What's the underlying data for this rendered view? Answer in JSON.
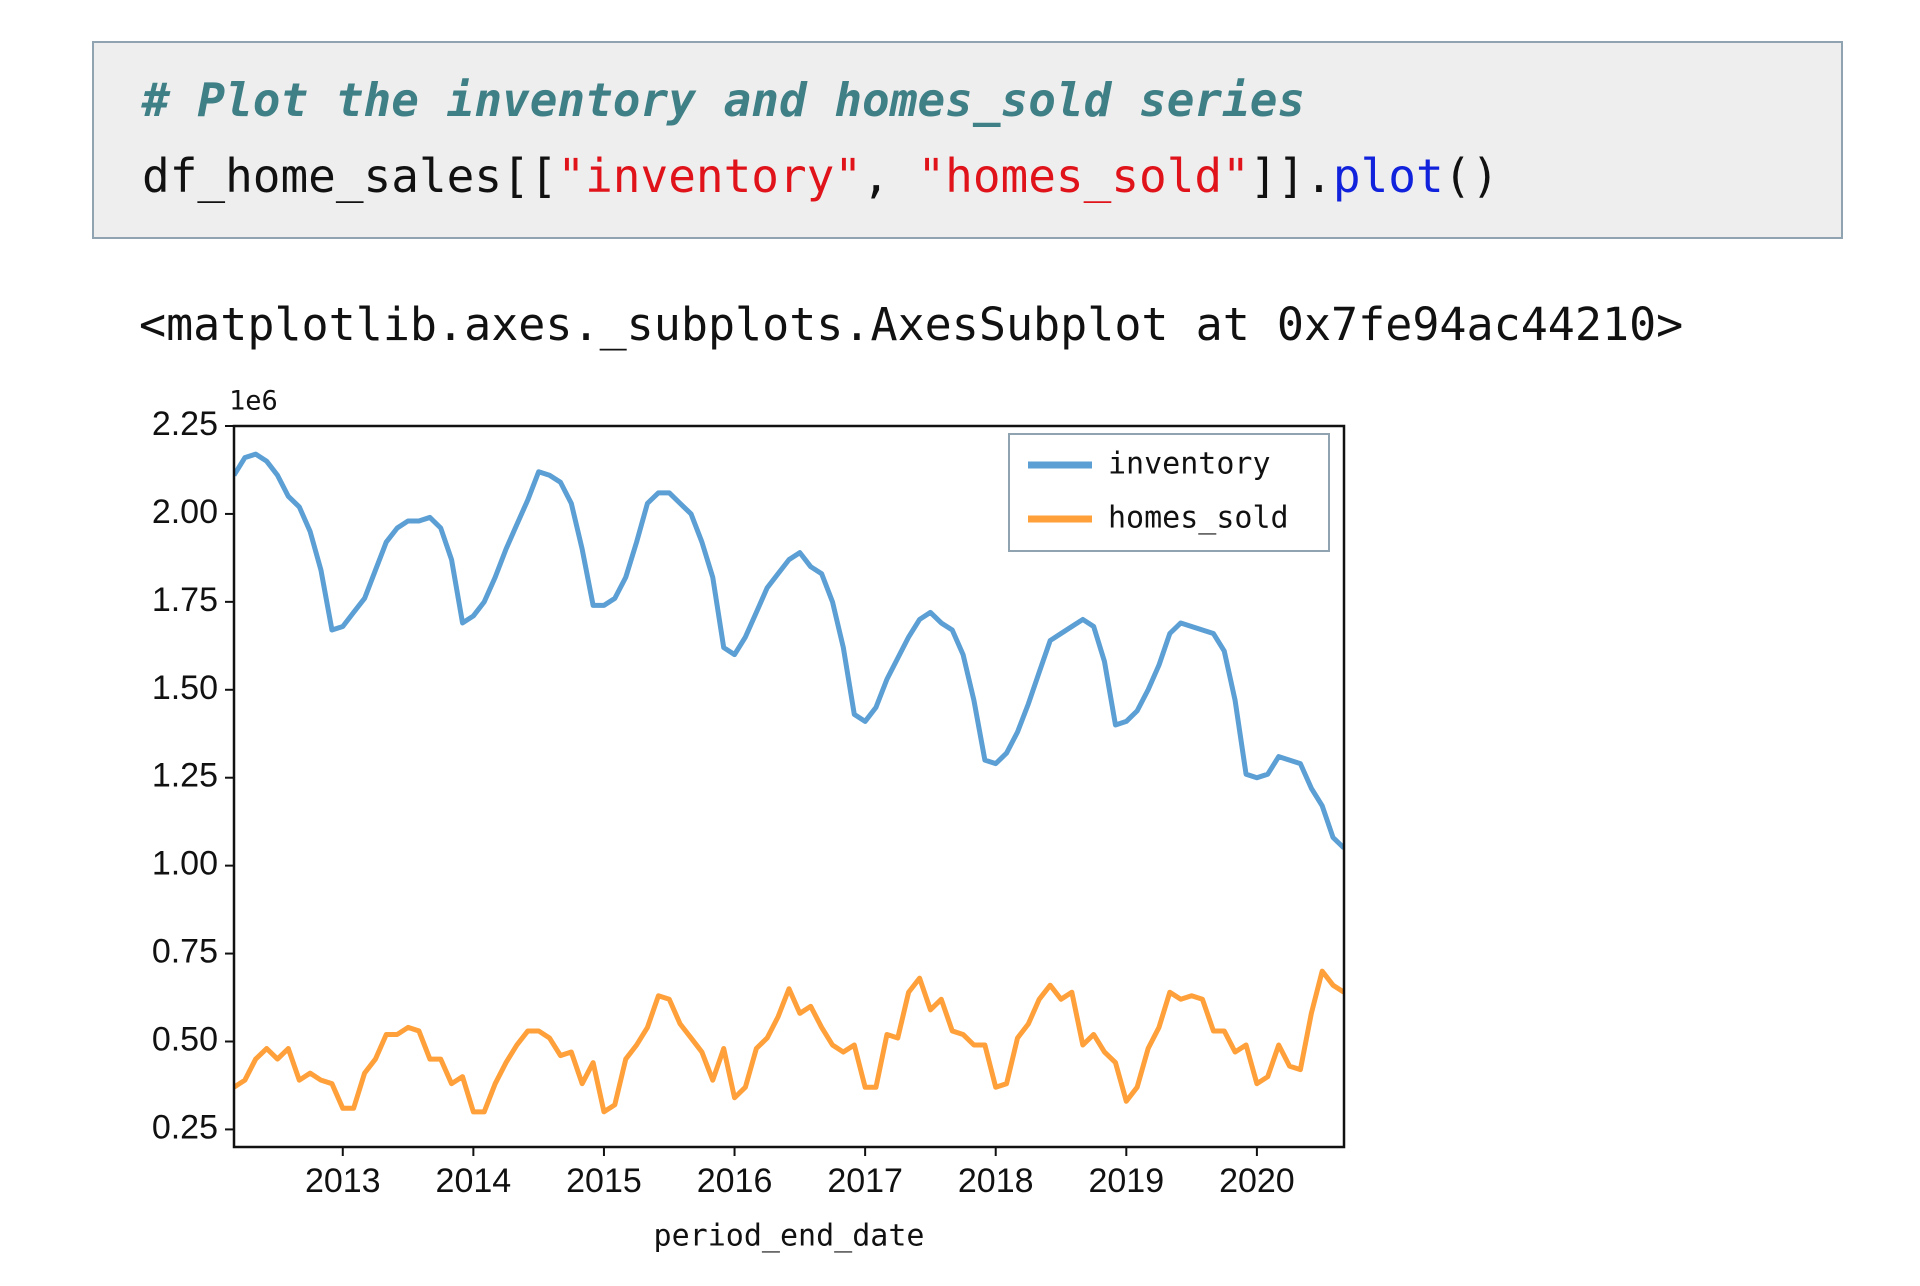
{
  "code_cell": {
    "comment": "# Plot the inventory and homes_sold series",
    "code": [
      "df_home_sales[[",
      "\"inventory\"",
      ", ",
      "\"homes_sold\"",
      "]].",
      "plot",
      "()"
    ]
  },
  "output": "<matplotlib.axes._subplots.AxesSubplot at 0x7fe94ac44210>",
  "chart_data": {
    "type": "line",
    "xlabel": "period_end_date",
    "y_offset_label": "1e6",
    "x": [
      2012.167,
      2012.25,
      2012.333,
      2012.417,
      2012.5,
      2012.583,
      2012.667,
      2012.75,
      2012.833,
      2012.917,
      2013,
      2013.083,
      2013.167,
      2013.25,
      2013.333,
      2013.417,
      2013.5,
      2013.583,
      2013.667,
      2013.75,
      2013.833,
      2013.917,
      2014,
      2014.083,
      2014.167,
      2014.25,
      2014.333,
      2014.417,
      2014.5,
      2014.583,
      2014.667,
      2014.75,
      2014.833,
      2014.917,
      2015,
      2015.083,
      2015.167,
      2015.25,
      2015.333,
      2015.417,
      2015.5,
      2015.583,
      2015.667,
      2015.75,
      2015.833,
      2015.917,
      2016,
      2016.083,
      2016.167,
      2016.25,
      2016.333,
      2016.417,
      2016.5,
      2016.583,
      2016.667,
      2016.75,
      2016.833,
      2016.917,
      2017,
      2017.083,
      2017.167,
      2017.25,
      2017.333,
      2017.417,
      2017.5,
      2017.583,
      2017.667,
      2017.75,
      2017.833,
      2017.917,
      2018,
      2018.083,
      2018.167,
      2018.25,
      2018.333,
      2018.417,
      2018.5,
      2018.583,
      2018.667,
      2018.75,
      2018.833,
      2018.917,
      2019,
      2019.083,
      2019.167,
      2019.25,
      2019.333,
      2019.417,
      2019.5,
      2019.583,
      2019.667,
      2019.75,
      2019.833,
      2019.917,
      2020,
      2020.083,
      2020.167,
      2020.25,
      2020.333,
      2020.417,
      2020.5,
      2020.583,
      2020.667
    ],
    "series": [
      {
        "name": "inventory",
        "color": "#5b9fd4",
        "values": [
          2.11,
          2.16,
          2.17,
          2.15,
          2.11,
          2.05,
          2.02,
          1.95,
          1.84,
          1.67,
          1.68,
          1.72,
          1.76,
          1.84,
          1.92,
          1.96,
          1.98,
          1.98,
          1.99,
          1.96,
          1.87,
          1.69,
          1.71,
          1.75,
          1.82,
          1.9,
          1.97,
          2.04,
          2.12,
          2.11,
          2.09,
          2.03,
          1.9,
          1.74,
          1.74,
          1.76,
          1.82,
          1.92,
          2.03,
          2.06,
          2.06,
          2.03,
          2.0,
          1.92,
          1.82,
          1.62,
          1.6,
          1.65,
          1.72,
          1.79,
          1.83,
          1.87,
          1.89,
          1.85,
          1.83,
          1.75,
          1.62,
          1.43,
          1.41,
          1.45,
          1.53,
          1.59,
          1.65,
          1.7,
          1.72,
          1.69,
          1.67,
          1.6,
          1.47,
          1.3,
          1.29,
          1.32,
          1.38,
          1.46,
          1.55,
          1.64,
          1.66,
          1.68,
          1.7,
          1.68,
          1.58,
          1.4,
          1.41,
          1.44,
          1.5,
          1.57,
          1.66,
          1.69,
          1.68,
          1.67,
          1.66,
          1.61,
          1.47,
          1.26,
          1.25,
          1.26,
          1.31,
          1.3,
          1.29,
          1.22,
          1.17,
          1.08,
          1.05
        ]
      },
      {
        "name": "homes_sold",
        "color": "#ffa03a",
        "values": [
          0.37,
          0.39,
          0.45,
          0.48,
          0.45,
          0.48,
          0.39,
          0.41,
          0.39,
          0.38,
          0.31,
          0.31,
          0.41,
          0.45,
          0.52,
          0.52,
          0.54,
          0.53,
          0.45,
          0.45,
          0.38,
          0.4,
          0.3,
          0.3,
          0.38,
          0.44,
          0.49,
          0.53,
          0.53,
          0.51,
          0.46,
          0.47,
          0.38,
          0.44,
          0.3,
          0.32,
          0.45,
          0.49,
          0.54,
          0.63,
          0.62,
          0.55,
          0.51,
          0.47,
          0.39,
          0.48,
          0.34,
          0.37,
          0.48,
          0.51,
          0.57,
          0.65,
          0.58,
          0.6,
          0.54,
          0.49,
          0.47,
          0.49,
          0.37,
          0.37,
          0.52,
          0.51,
          0.64,
          0.68,
          0.59,
          0.62,
          0.53,
          0.52,
          0.49,
          0.49,
          0.37,
          0.38,
          0.51,
          0.55,
          0.62,
          0.66,
          0.62,
          0.64,
          0.49,
          0.52,
          0.47,
          0.44,
          0.33,
          0.37,
          0.48,
          0.54,
          0.64,
          0.62,
          0.63,
          0.62,
          0.53,
          0.53,
          0.47,
          0.49,
          0.38,
          0.4,
          0.49,
          0.43,
          0.42,
          0.58,
          0.7,
          0.66,
          0.64
        ]
      }
    ],
    "xlim": [
      2012.167,
      2020.667
    ],
    "xticks": [
      2013,
      2014,
      2015,
      2016,
      2017,
      2018,
      2019,
      2020
    ],
    "ylim": [
      0.2,
      2.25
    ],
    "yticks": [
      {
        "value": 0.25,
        "label": "0.25"
      },
      {
        "value": 0.5,
        "label": "0.50"
      },
      {
        "value": 0.75,
        "label": "0.75"
      },
      {
        "value": 1,
        "label": "1.00"
      },
      {
        "value": 1.25,
        "label": "1.25"
      },
      {
        "value": 1.5,
        "label": "1.50"
      },
      {
        "value": 1.75,
        "label": "1.75"
      },
      {
        "value": 2,
        "label": "2.00"
      },
      {
        "value": 2.25,
        "label": "2.25"
      }
    ],
    "grid": false,
    "legend": "upper right"
  }
}
